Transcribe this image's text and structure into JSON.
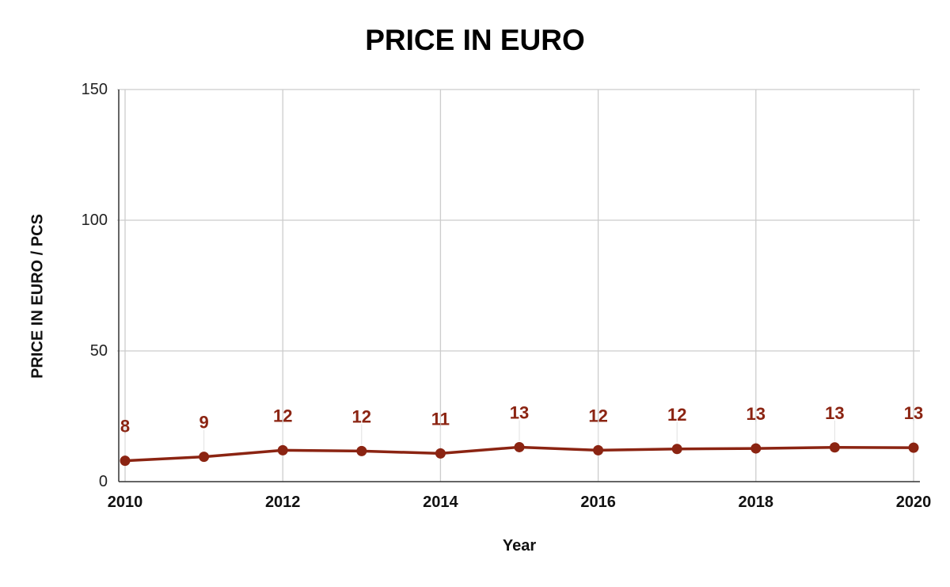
{
  "chart_data": {
    "type": "line",
    "title": "PRICE IN EURO",
    "xlabel": "Year",
    "ylabel": "PRICE IN EURO / PCS",
    "x": [
      2010,
      2011,
      2012,
      2013,
      2014,
      2015,
      2016,
      2017,
      2018,
      2019,
      2020
    ],
    "series": [
      {
        "values": [
          8,
          9.5,
          12,
          11.7,
          10.8,
          13.2,
          12,
          12.5,
          12.7,
          13.1,
          13
        ],
        "data_labels": [
          "8",
          "9",
          "12",
          "12",
          "11",
          "13",
          "12",
          "12",
          "13",
          "13",
          "13"
        ],
        "color": "#8b2412"
      }
    ],
    "xlim": [
      2010,
      2020
    ],
    "ylim": [
      0,
      150
    ],
    "x_ticks": [
      "2010",
      "2012",
      "2014",
      "2016",
      "2018",
      "2020"
    ],
    "y_ticks": [
      "0",
      "50",
      "100",
      "150"
    ],
    "grid": true,
    "colors": {
      "grid": "#cccccc",
      "axis": "#333333",
      "series": "#8b2412"
    }
  }
}
